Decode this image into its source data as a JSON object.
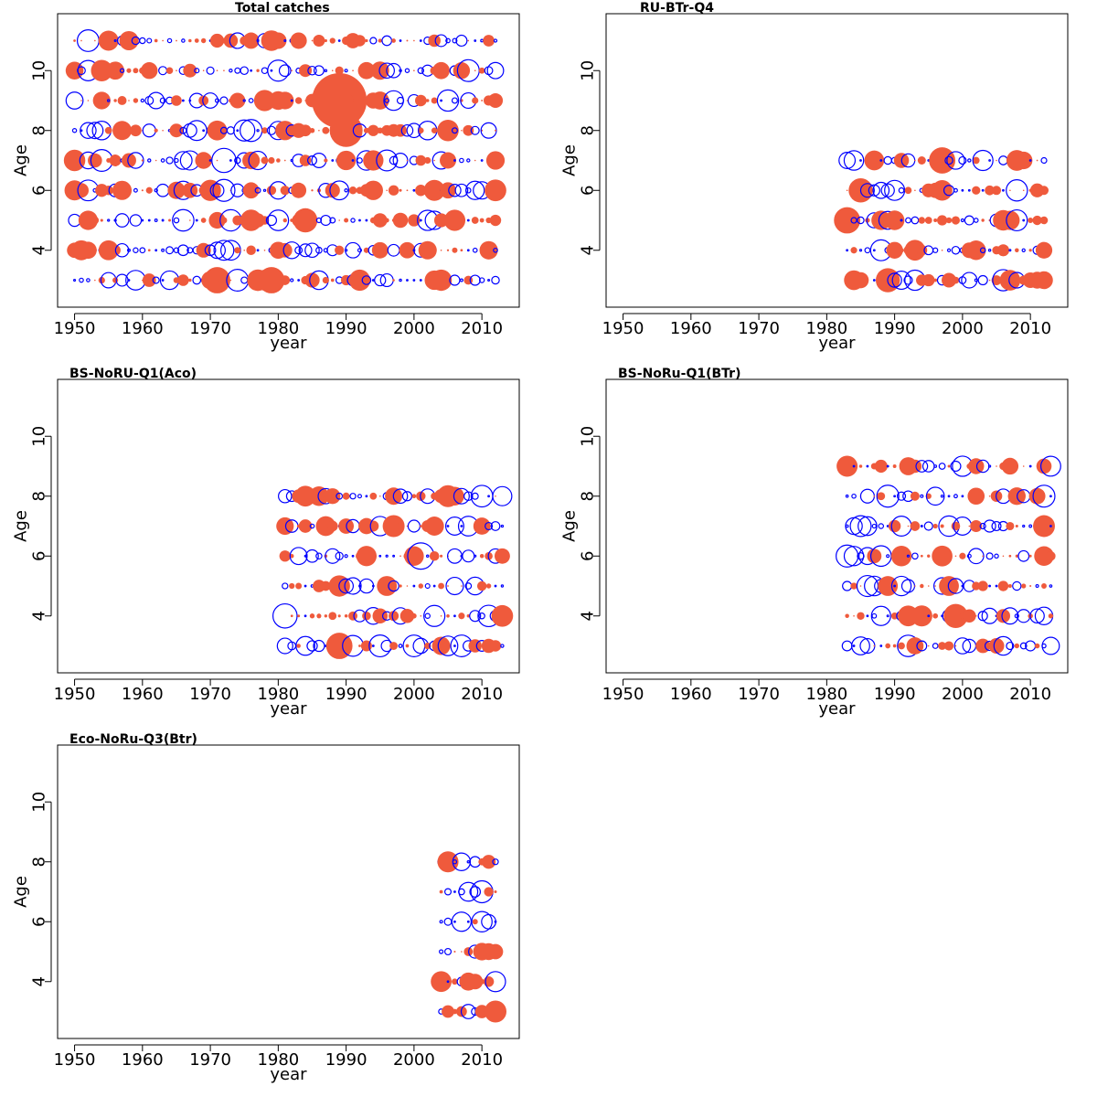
{
  "chart_data": [
    {
      "type": "bubble",
      "title": "Total catches",
      "xlabel": "year",
      "ylabel": "Age",
      "xlim": [
        1947.5,
        2015.5
      ],
      "ylim": [
        2.1,
        11.9
      ],
      "xticks": [
        1950,
        1960,
        1970,
        1980,
        1990,
        2000,
        2010
      ],
      "yticks": [
        4,
        6,
        8,
        10
      ],
      "grid": false,
      "ages": [
        3,
        4,
        5,
        6,
        7,
        8,
        9,
        10,
        11
      ],
      "year_range": [
        1950,
        2012
      ],
      "highlights": [
        {
          "year": 1989,
          "age": 9,
          "sign": "pos",
          "size": 2.5
        },
        {
          "year": 1990,
          "age": 8,
          "sign": "pos",
          "size": 1.5
        },
        {
          "year": 1971,
          "age": 3,
          "sign": "pos",
          "size": 1.2
        },
        {
          "year": 1972,
          "age": 7,
          "sign": "neg",
          "size": 1.1
        },
        {
          "year": 1979,
          "age": 3,
          "sign": "pos",
          "size": 1.2
        },
        {
          "year": 1984,
          "age": 5,
          "sign": "pos",
          "size": 1.1
        }
      ]
    },
    {
      "type": "bubble",
      "title": "RU-BTr-Q4",
      "xlabel": "year",
      "ylabel": "Age",
      "xlim": [
        1947.5,
        2015.5
      ],
      "ylim": [
        2.1,
        11.9
      ],
      "xticks": [
        1950,
        1960,
        1970,
        1980,
        1990,
        2000,
        2010
      ],
      "yticks": [
        4,
        6,
        8,
        10
      ],
      "grid": false,
      "ages": [
        3,
        4,
        5,
        6,
        7
      ],
      "year_range": [
        1983,
        2012
      ],
      "highlights": [
        {
          "year": 1983,
          "age": 5,
          "sign": "pos",
          "size": 1.2
        },
        {
          "year": 1985,
          "age": 6,
          "sign": "pos",
          "size": 1.1
        },
        {
          "year": 1997,
          "age": 7,
          "sign": "pos",
          "size": 1.2
        },
        {
          "year": 1989,
          "age": 3,
          "sign": "pos",
          "size": 1.1
        }
      ]
    },
    {
      "type": "bubble",
      "title": "BS-NoRU-Q1(Aco)",
      "xlabel": "year",
      "ylabel": "Age",
      "xlim": [
        1947.5,
        2015.5
      ],
      "ylim": [
        2.1,
        11.9
      ],
      "xticks": [
        1950,
        1960,
        1970,
        1980,
        1990,
        2000,
        2010
      ],
      "yticks": [
        4,
        6,
        8,
        10
      ],
      "grid": false,
      "ages": [
        3,
        4,
        5,
        6,
        7,
        8
      ],
      "year_range": [
        1981,
        2013
      ],
      "highlights": [
        {
          "year": 1989,
          "age": 3,
          "sign": "pos",
          "size": 1.2
        },
        {
          "year": 2001,
          "age": 6,
          "sign": "neg",
          "size": 1.2
        },
        {
          "year": 1981,
          "age": 4,
          "sign": "neg",
          "size": 1.1
        }
      ]
    },
    {
      "type": "bubble",
      "title": "BS-NoRu-Q1(BTr)",
      "xlabel": "year",
      "ylabel": "Age",
      "xlim": [
        1947.5,
        2015.5
      ],
      "ylim": [
        2.1,
        11.9
      ],
      "xticks": [
        1950,
        1960,
        1970,
        1980,
        1990,
        2000,
        2010
      ],
      "yticks": [
        4,
        6,
        8,
        10
      ],
      "grid": false,
      "ages": [
        3,
        4,
        5,
        6,
        7,
        8,
        9
      ],
      "year_range": [
        1983,
        2013
      ],
      "highlights": [
        {
          "year": 1999,
          "age": 4,
          "sign": "pos",
          "size": 1.1
        },
        {
          "year": 1983,
          "age": 6,
          "sign": "neg",
          "size": 1.0
        },
        {
          "year": 1989,
          "age": 8,
          "sign": "neg",
          "size": 1.0
        }
      ]
    },
    {
      "type": "bubble",
      "title": "Eco-NoRu-Q3(Btr)",
      "xlabel": "year",
      "ylabel": "Age",
      "xlim": [
        1947.5,
        2015.5
      ],
      "ylim": [
        2.1,
        11.9
      ],
      "xticks": [
        1950,
        1960,
        1970,
        1980,
        1990,
        2000,
        2010
      ],
      "yticks": [
        4,
        6,
        8,
        10
      ],
      "grid": false,
      "ages": [
        3,
        4,
        5,
        6,
        7,
        8
      ],
      "year_range": [
        2004,
        2012
      ],
      "highlights": [
        {
          "year": 2012,
          "age": 3,
          "sign": "pos",
          "size": 1.0
        },
        {
          "year": 2010,
          "age": 7,
          "sign": "neg",
          "size": 1.0
        }
      ]
    }
  ],
  "colors": {
    "positive": "#ef5a3c",
    "negative": "#0000ff"
  }
}
